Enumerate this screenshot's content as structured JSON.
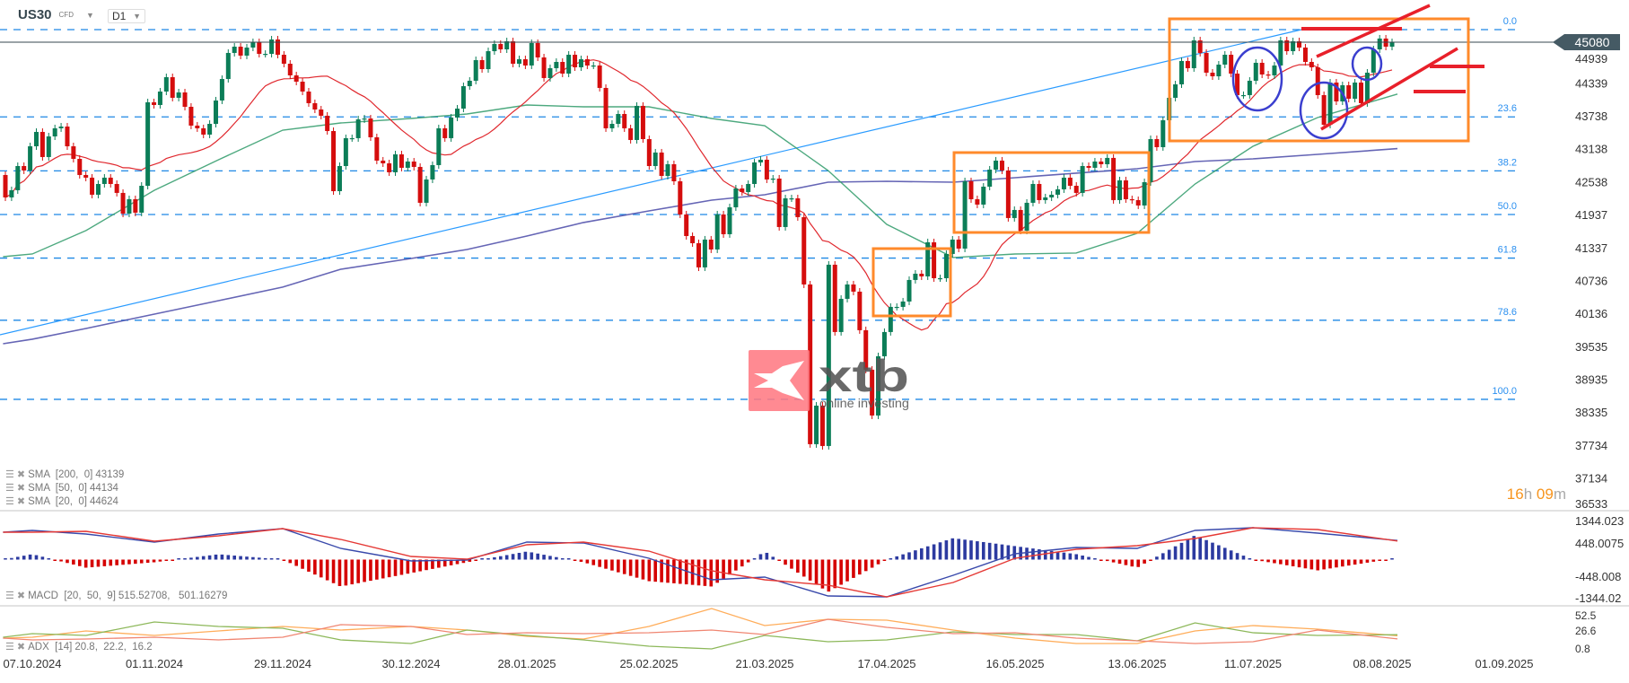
{
  "header": {
    "symbol": "US30",
    "instrument_type": "CFD",
    "timeframe": "D1"
  },
  "colors": {
    "candle_up": "#0b7d57",
    "candle_down": "#d50d0d",
    "sma20": "#e0282e",
    "sma50": "#2e9a68",
    "sma200": "#4a4aa8",
    "fib": "#1e88e5",
    "trendline": "#2a9bff",
    "price_badge": "#455a64",
    "macd": "#3949ab",
    "signal": "#e53935",
    "hist_up": "#2c3aa0",
    "hist_down": "#d50000",
    "adx": "#ffad5a",
    "plus_di": "#8db85a",
    "minus_di": "#f08672",
    "box": "#ff8a2b",
    "circle": "#3b3fcf",
    "annotation_line": "#e8202a",
    "logo": "#ff7a83",
    "timer": "#f7941d"
  },
  "timer": {
    "hours": "16",
    "h": "h",
    "minutes": "09",
    "m": "m"
  },
  "logo": {
    "brand": "xtb",
    "tagline": "online investing"
  },
  "chart_data": {
    "type": "candlestick",
    "title": "",
    "current_price": 45080,
    "current_price_label": "45080",
    "price_axis": [
      "44939",
      "44339",
      "43738",
      "43138",
      "42538",
      "41937",
      "41337",
      "40736",
      "40136",
      "39535",
      "38935",
      "38335",
      "37734",
      "37134",
      "36533"
    ],
    "date_ticks": [
      "07.10.2024",
      "01.11.2024",
      "29.11.2024",
      "30.12.2024",
      "28.01.2025",
      "25.02.2025",
      "21.03.2025",
      "17.04.2025",
      "16.05.2025",
      "13.06.2025",
      "11.07.2025",
      "08.08.2025",
      "01.09.2025"
    ],
    "first_open": 42659,
    "closes": [
      42250,
      42381,
      42822,
      42741,
      43182,
      43444,
      42986,
      43362,
      43510,
      43542,
      43182,
      42953,
      42659,
      42610,
      42299,
      42495,
      42610,
      42495,
      42332,
      41955,
      42217,
      41972,
      42462,
      43984,
      43935,
      44180,
      44442,
      44066,
      44164,
      43902,
      43559,
      43510,
      43395,
      43591,
      44017,
      44409,
      44884,
      44998,
      44835,
      44982,
      45080,
      44867,
      44867,
      45129,
      44851,
      44687,
      44475,
      44360,
      44180,
      43968,
      43853,
      43739,
      43460,
      42364,
      42822,
      43330,
      43330,
      43673,
      43689,
      43346,
      42921,
      42871,
      42708,
      43035,
      42790,
      42904,
      42806,
      42152,
      42577,
      42839,
      43510,
      43330,
      43706,
      43869,
      44278,
      44377,
      44753,
      44589,
      44916,
      45047,
      44949,
      45096,
      44687,
      44769,
      44655,
      45064,
      44802,
      44426,
      44606,
      44720,
      44507,
      44851,
      44622,
      44769,
      44655,
      44655,
      44246,
      43510,
      43591,
      43771,
      43510,
      43297,
      43919,
      43313,
      42822,
      43068,
      42642,
      42855,
      42544,
      41939,
      41546,
      41415,
      40974,
      41481,
      41301,
      41939,
      41579,
      42070,
      42413,
      42348,
      42495,
      42888,
      42937,
      42577,
      42593,
      41710,
      42233,
      42233,
      41890,
      40663,
      37751,
      38454,
      37718,
      41023,
      39796,
      40401,
      40663,
      40532,
      39829,
      39109,
      38274,
      39354,
      39796,
      40254,
      40254,
      40352,
      40745,
      40859,
      40810,
      41432,
      40777,
      40777,
      41219,
      41481,
      41317,
      42544,
      42217,
      42119,
      42446,
      42757,
      42921,
      42741,
      41874,
      42021,
      41644,
      42152,
      42495,
      42201,
      42250,
      42299,
      42397,
      42610,
      42462,
      42332,
      42822,
      42790,
      42904,
      42855,
      42970,
      42201,
      42561,
      42217,
      42201,
      42103,
      42528,
      43313,
      43166,
      43657,
      44066,
      44311,
      44737,
      44606,
      45113,
      44884,
      44524,
      44458,
      44671,
      44851,
      44507,
      44115,
      44115,
      44377,
      44704,
      44491,
      44475,
      44655,
      45113,
      44916,
      45096,
      44982,
      44720,
      44622,
      44115,
      43575,
      44344,
      44000,
      44295,
      44049,
      44344,
      43968,
      44524,
      44949,
      45146,
      44998,
      45080
    ],
    "fibonacci": [
      {
        "label": "0.0",
        "price": 45309
      },
      {
        "label": "23.6",
        "price": 43718
      },
      {
        "label": "38.2",
        "price": 42734
      },
      {
        "label": "50.0",
        "price": 41939
      },
      {
        "label": "61.8",
        "price": 41144
      },
      {
        "label": "78.6",
        "price": 40011
      },
      {
        "label": "100.0",
        "price": 38569
      }
    ],
    "sample_dates": [
      "01.10.2024",
      "07.10.2024",
      "18.10.2024",
      "01.11.2024",
      "15.11.2024",
      "29.11.2024",
      "13.12.2024",
      "30.12.2024",
      "13.01.2025",
      "28.01.2025",
      "10.02.2025",
      "25.02.2025",
      "10.03.2025",
      "21.03.2025",
      "04.04.2025",
      "17.04.2025",
      "02.05.2025",
      "16.05.2025",
      "30.05.2025",
      "13.06.2025",
      "27.06.2025",
      "11.07.2025",
      "25.07.2025",
      "11.08.2025"
    ],
    "sma": [
      {
        "id": "sma200",
        "label": "SMA  [200,  0]",
        "value": "43139",
        "values": [
          39583,
          39665,
          39861,
          40123,
          40368,
          40614,
          40941,
          41137,
          41301,
          41546,
          41792,
          42004,
          42201,
          42299,
          42528,
          42544,
          42528,
          42610,
          42692,
          42773,
          42904,
          42953,
          43035,
          43139
        ]
      },
      {
        "id": "sma50",
        "label": "SMA  [50,  0]",
        "value": "44134",
        "values": [
          41170,
          41219,
          41645,
          42381,
          42937,
          43477,
          43608,
          43689,
          43771,
          43935,
          43902,
          43902,
          43689,
          43559,
          42741,
          41759,
          41154,
          41219,
          41236,
          41595,
          42495,
          43182,
          43706,
          44134
        ]
      },
      {
        "id": "sma20",
        "label": "SMA  [20,  0]",
        "value": "44624",
        "period": 20
      }
    ],
    "macd": {
      "label": "MACD  [20,  50,  9]",
      "values_text": "515.52708,   501.16279",
      "axis": [
        1344.023,
        448.0075,
        -448.008,
        -1344.02
      ],
      "axis_labels": [
        "1344.023",
        "448.0075",
        "-448.008",
        "-1344.02"
      ],
      "macd": [
        738,
        787,
        690,
        472,
        690,
        835,
        303,
        -36,
        -12,
        472,
        448,
        36,
        -545,
        -472,
        -981,
        -1005,
        -424,
        157,
        327,
        303,
        787,
        859,
        714,
        515.53
      ],
      "signal": [
        738,
        738,
        763,
        496,
        642,
        835,
        545,
        85,
        12,
        399,
        472,
        230,
        -303,
        -545,
        -690,
        -1005,
        -617,
        36,
        278,
        375,
        569,
        859,
        811,
        501.16
      ]
    },
    "adx": {
      "label": "ADX  [14]",
      "values_text": "20.8,  22.2,  16.2",
      "axis": [
        52.5,
        26.6,
        0.8
      ],
      "axis_labels": [
        "52.5",
        "26.6",
        "0.8"
      ],
      "adx": [
        17.3,
        18.6,
        27.5,
        21.1,
        27.5,
        33.9,
        28.8,
        33.9,
        28.8,
        19.9,
        16.1,
        33.9,
        59.4,
        35.2,
        44.1,
        42.8,
        28.8,
        17.3,
        9.7,
        9.7,
        27.5,
        35.2,
        30.1,
        20.8
      ],
      "plus_di": [
        18.6,
        23.7,
        21.1,
        40.3,
        33.9,
        31.3,
        14.8,
        9.7,
        28.8,
        21.1,
        14.8,
        5.9,
        2.0,
        21.1,
        12.2,
        14.8,
        26.2,
        22.4,
        22.4,
        13.5,
        39.0,
        25.0,
        21.1,
        22.2
      ],
      "minus_di": [
        17.3,
        14.8,
        16.1,
        18.6,
        14.8,
        18.6,
        36.4,
        33.9,
        22.4,
        25.0,
        23.7,
        25.0,
        28.8,
        22.4,
        44.1,
        32.6,
        23.7,
        25.0,
        17.3,
        13.5,
        9.7,
        12.2,
        28.8,
        16.2
      ]
    }
  }
}
